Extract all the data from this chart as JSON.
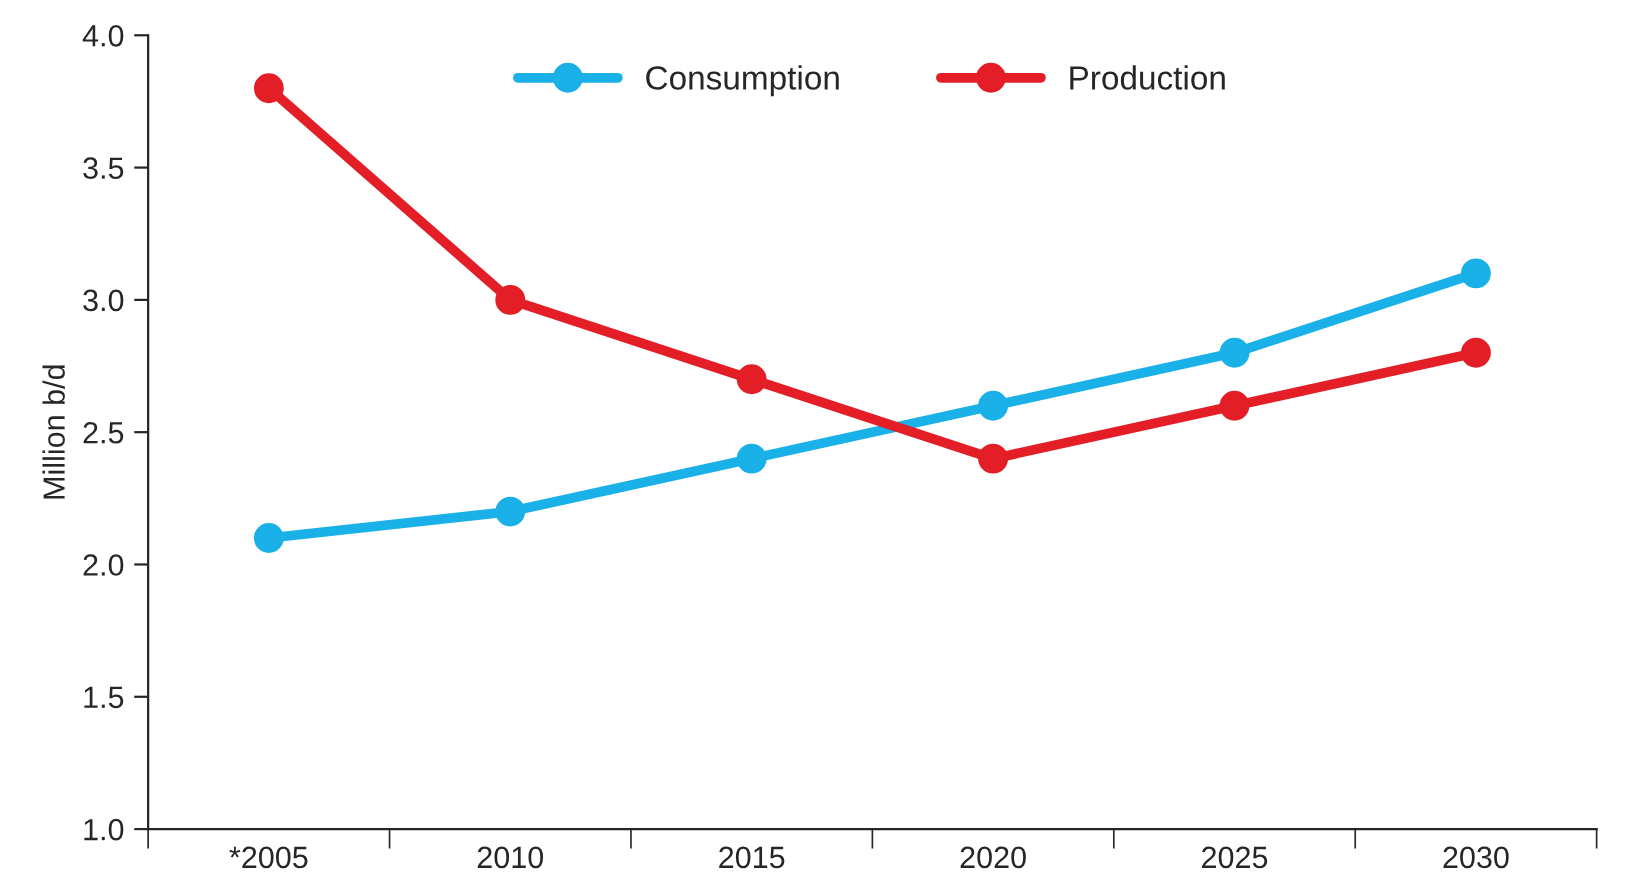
{
  "chart_data": {
    "type": "line",
    "ylabel": "Million b/d",
    "categories": [
      "*2005",
      "2010",
      "2015",
      "2020",
      "2025",
      "2030"
    ],
    "series": [
      {
        "name": "Consumption",
        "color": "#1ab0e8",
        "values": [
          2.1,
          2.2,
          2.4,
          2.6,
          2.8,
          3.1
        ]
      },
      {
        "name": "Production",
        "color": "#e31e26",
        "values": [
          3.8,
          3.0,
          2.7,
          2.4,
          2.6,
          2.8
        ]
      }
    ],
    "ylim": [
      1.0,
      4.0
    ],
    "yticks": [
      {
        "value": 1.0,
        "label": "1.0"
      },
      {
        "value": 1.5,
        "label": "1.5"
      },
      {
        "value": 2.0,
        "label": "2.0"
      },
      {
        "value": 2.5,
        "label": "2.5"
      },
      {
        "value": 3.0,
        "label": "3.0"
      },
      {
        "value": 3.5,
        "label": "3.5"
      },
      {
        "value": 4.0,
        "label": "4.0"
      }
    ],
    "grid": false,
    "legend": "top",
    "marker": "circle",
    "line_style": "solid"
  }
}
